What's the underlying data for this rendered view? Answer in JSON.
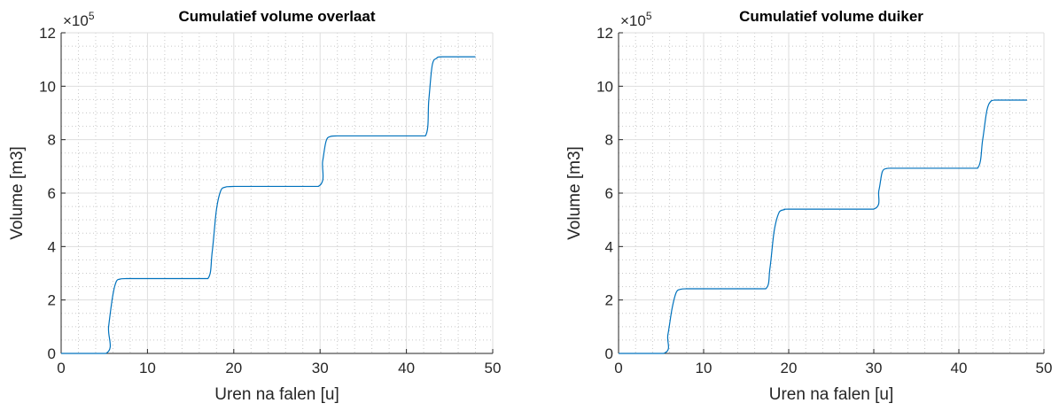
{
  "chart_data": [
    {
      "type": "line",
      "title": "Cumulatief volume overlaat",
      "xlabel": "Uren na falen [u]",
      "ylabel": "Volume [m3]",
      "y_multiplier_label": "×10",
      "y_multiplier_exponent": "5",
      "xlim": [
        0,
        50
      ],
      "ylim": [
        0,
        12
      ],
      "xticks": [
        "0",
        "10",
        "20",
        "30",
        "40",
        "50"
      ],
      "yticks": [
        "0",
        "2",
        "4",
        "6",
        "8",
        "10",
        "12"
      ],
      "grid": true,
      "minor_grid": true,
      "line_color": "#0072BD",
      "series": [
        {
          "x": [
            0,
            5.2,
            5.5,
            6.0,
            6.4,
            6.8,
            7.5,
            10,
            15,
            17.0,
            17.5,
            18.0,
            18.5,
            19.0,
            20,
            25,
            29.8,
            30.3,
            30.7,
            31.2,
            32,
            35,
            40,
            42.2,
            42.6,
            43.0,
            43.5,
            44,
            46,
            48
          ],
          "y": [
            0,
            0,
            1.0,
            2.2,
            2.7,
            2.78,
            2.8,
            2.8,
            2.8,
            2.8,
            3.8,
            5.4,
            6.1,
            6.22,
            6.25,
            6.25,
            6.25,
            7.2,
            7.95,
            8.12,
            8.14,
            8.14,
            8.14,
            8.14,
            9.5,
            10.8,
            11.05,
            11.1,
            11.1,
            11.1
          ]
        }
      ]
    },
    {
      "type": "line",
      "title": "Cumulatief volume duiker",
      "xlabel": "Uren na falen [u]",
      "ylabel": "Volume [m3]",
      "y_multiplier_label": "×10",
      "y_multiplier_exponent": "5",
      "xlim": [
        0,
        50
      ],
      "ylim": [
        0,
        12
      ],
      "xticks": [
        "0",
        "10",
        "20",
        "30",
        "40",
        "50"
      ],
      "yticks": [
        "0",
        "2",
        "4",
        "6",
        "8",
        "10",
        "12"
      ],
      "grid": true,
      "minor_grid": true,
      "line_color": "#0072BD",
      "series": [
        {
          "x": [
            0,
            5.3,
            5.8,
            6.3,
            6.8,
            7.3,
            8,
            10,
            15,
            17.3,
            17.8,
            18.3,
            18.9,
            19.5,
            20,
            25,
            30.0,
            30.6,
            31.0,
            31.5,
            32,
            35,
            40,
            42.2,
            42.8,
            43.3,
            43.8,
            44.3,
            46,
            48
          ],
          "y": [
            0,
            0,
            0.7,
            1.7,
            2.3,
            2.4,
            2.42,
            2.42,
            2.42,
            2.42,
            3.2,
            4.6,
            5.3,
            5.38,
            5.4,
            5.4,
            5.4,
            6.1,
            6.8,
            6.92,
            6.93,
            6.93,
            6.93,
            6.93,
            8.0,
            9.1,
            9.45,
            9.48,
            9.48,
            9.48
          ]
        }
      ]
    }
  ]
}
